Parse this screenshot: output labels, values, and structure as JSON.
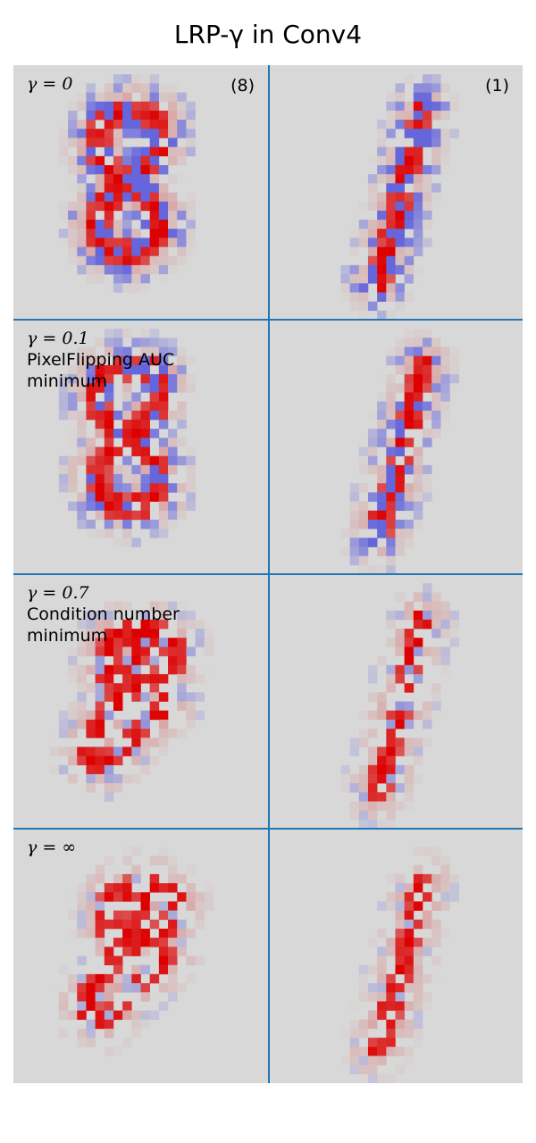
{
  "title": "LRP-γ in Conv4",
  "columns": [
    {
      "class_label": "(8)"
    },
    {
      "class_label": "(1)"
    }
  ],
  "rows": [
    {
      "gamma": "γ = 0",
      "note_1": "",
      "note_2": ""
    },
    {
      "gamma": "γ = 0.1",
      "note_1": "PixelFlipping AUC",
      "note_2": "minimum"
    },
    {
      "gamma": "γ = 0.7",
      "note_1": "Condition number",
      "note_2": "minimum"
    },
    {
      "gamma": "γ = ∞",
      "note_1": "",
      "note_2": ""
    }
  ],
  "colors": {
    "background": "#d8d8d8",
    "positive": "#dd0000",
    "negative": "#3333dd",
    "divider": "#1f77b4"
  }
}
